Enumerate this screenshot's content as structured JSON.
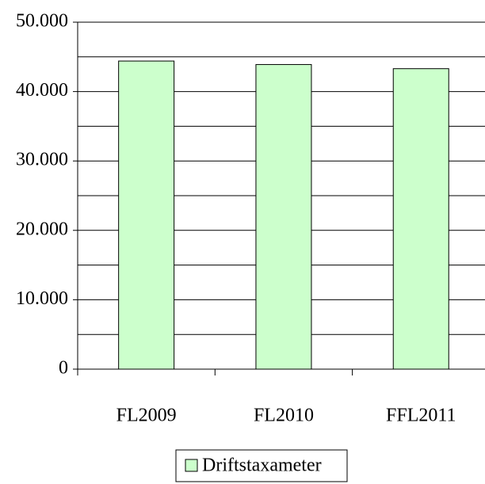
{
  "chart_data": {
    "type": "bar",
    "categories": [
      "FL2009",
      "FL2010",
      "FFL2011"
    ],
    "series": [
      {
        "name": "Driftstaxameter",
        "color": "#ccffcc",
        "values": [
          44400,
          43900,
          43300
        ]
      }
    ],
    "ylim": [
      0,
      50000
    ],
    "yticks": [
      {
        "value": 0,
        "label": "0"
      },
      {
        "value": 10000,
        "label": "10.000"
      },
      {
        "value": 20000,
        "label": "20.000"
      },
      {
        "value": 30000,
        "label": "30.000"
      },
      {
        "value": 40000,
        "label": "40.000"
      },
      {
        "value": 50000,
        "label": "50.000"
      }
    ],
    "minor_yticks": [
      5000,
      15000,
      25000,
      35000,
      45000
    ],
    "grid": true,
    "legend": "bottom"
  }
}
